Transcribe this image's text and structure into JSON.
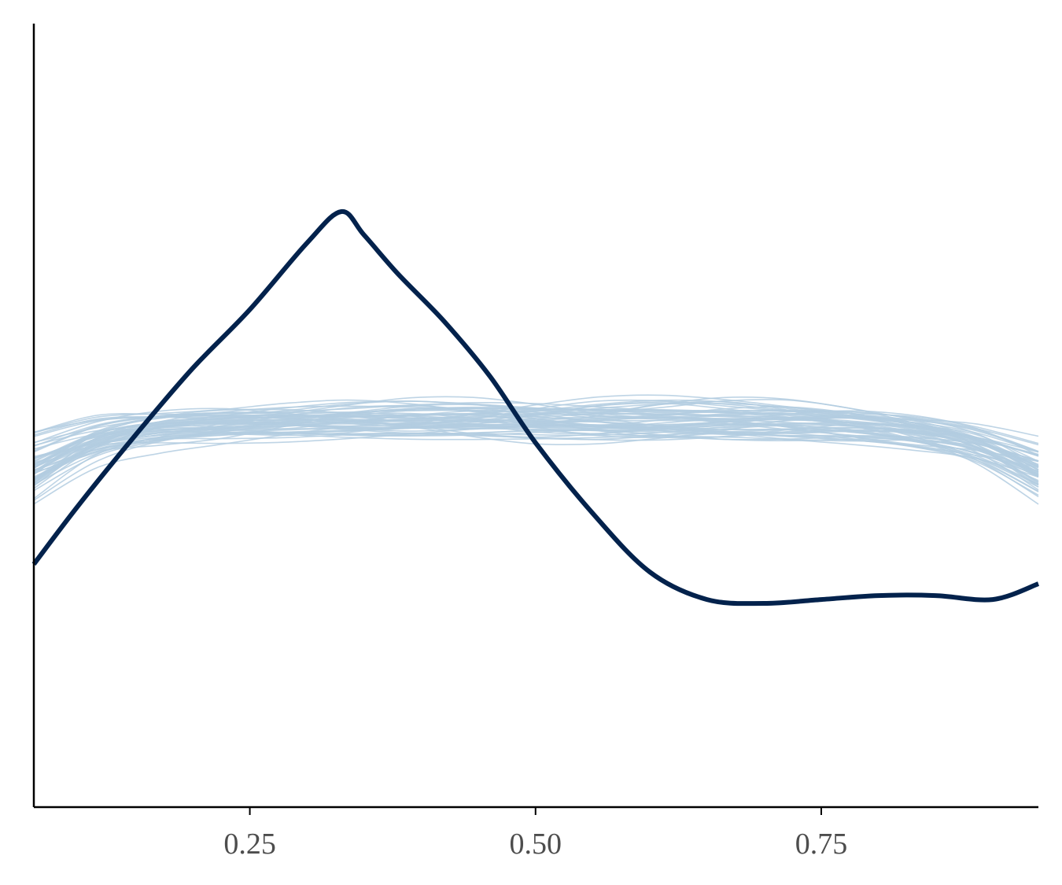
{
  "chart_data": {
    "type": "line",
    "title": "",
    "xlabel": "",
    "ylabel": "",
    "xlim": [
      0.061,
      0.94
    ],
    "ylim": [
      0.0,
      1.0
    ],
    "x_ticks": [
      0.25,
      0.5,
      0.75
    ],
    "x_tick_labels": [
      "0.25",
      "0.50",
      "0.75"
    ],
    "grid": false,
    "legend": "none",
    "colors": {
      "observed": "#03224c",
      "replicates": "#b3cde0",
      "axis": "#000000"
    },
    "replicate_count": 60,
    "replicate_band": {
      "mean_density": 0.495,
      "spread": 0.03,
      "lower_edge_density_at_xmin": 0.43,
      "lower_edge_density_at_xmax": 0.44
    },
    "series": [
      {
        "role": "observed",
        "x": [
          0.061,
          0.1,
          0.15,
          0.2,
          0.25,
          0.3,
          0.33,
          0.35,
          0.38,
          0.42,
          0.46,
          0.5,
          0.55,
          0.6,
          0.65,
          0.7,
          0.75,
          0.8,
          0.85,
          0.9,
          0.94
        ],
        "y": [
          0.31,
          0.385,
          0.475,
          0.56,
          0.635,
          0.72,
          0.76,
          0.73,
          0.68,
          0.62,
          0.55,
          0.465,
          0.375,
          0.3,
          0.265,
          0.26,
          0.265,
          0.27,
          0.27,
          0.265,
          0.285
        ]
      }
    ]
  }
}
